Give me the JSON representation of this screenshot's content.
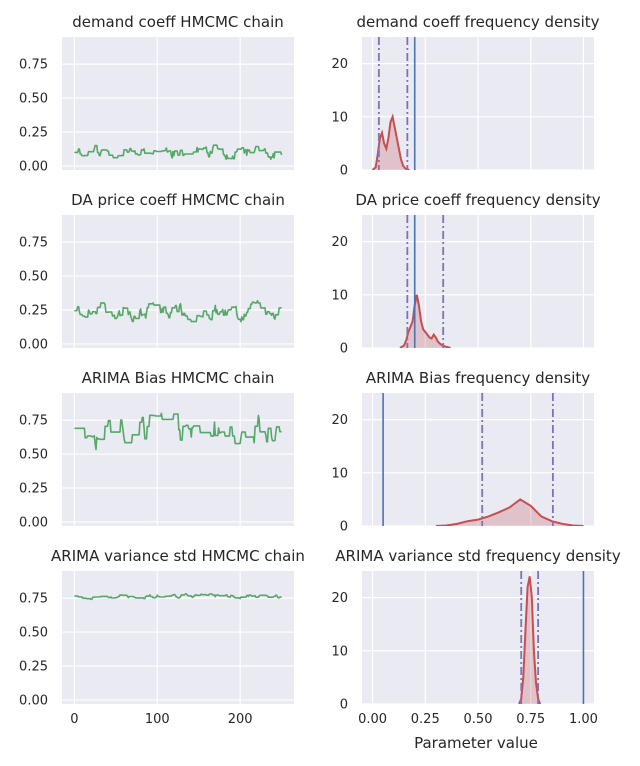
{
  "colors": {
    "panel_bg": "#eaeaf2",
    "grid": "#ffffff",
    "chain": "#55a868",
    "kde_line": "#c44e52",
    "kde_fill": "#c44e52",
    "ref_line": "#4c72b0",
    "ci_line": "#8172b3"
  },
  "figure": {
    "xlabel": "Parameter value"
  },
  "chart_data": [
    {
      "type": "line",
      "title": "demand coeff HMCMC chain",
      "xlim": [
        -15,
        265
      ],
      "ylim": [
        -0.03,
        0.95
      ],
      "xticks": [
        0,
        100,
        200
      ],
      "yticks": [
        0.0,
        0.25,
        0.5,
        0.75
      ],
      "xtick_labels": [
        "",
        "",
        ""
      ],
      "ytick_labels": [
        "0.00",
        "0.25",
        "0.50",
        "0.75"
      ],
      "series": [
        {
          "x": [
            0,
            250
          ],
          "y": [
            0.1,
            0.1
          ],
          "trace": {
            "seed": 11,
            "n": 250,
            "center": 0.1,
            "spread": 0.045,
            "stay": 0.6
          }
        }
      ]
    },
    {
      "type": "area",
      "title": "demand coeff frequency density",
      "xlim": [
        -0.05,
        1.05
      ],
      "ylim": [
        0,
        25
      ],
      "xticks": [
        0,
        0.25,
        0.5,
        0.75,
        1.0
      ],
      "yticks": [
        0,
        10,
        20
      ],
      "xtick_labels": [
        "",
        "",
        "",
        "",
        ""
      ],
      "ytick_labels": [
        "0",
        "10",
        "20"
      ],
      "kde": {
        "x": [
          0.0,
          0.015,
          0.025,
          0.035,
          0.045,
          0.055,
          0.065,
          0.075,
          0.085,
          0.095,
          0.105,
          0.115,
          0.125,
          0.135,
          0.145,
          0.155,
          0.165,
          0.175
        ],
        "y": [
          0,
          0.5,
          3,
          6,
          7,
          5,
          4,
          6,
          9,
          10,
          8,
          6,
          4,
          2,
          0.8,
          0.3,
          0.1,
          0
        ]
      },
      "ref_line": 0.2,
      "ci": [
        0.03,
        0.165
      ]
    },
    {
      "type": "line",
      "title": "DA price coeff HMCMC chain",
      "xlim": [
        -15,
        265
      ],
      "ylim": [
        -0.03,
        0.95
      ],
      "xticks": [
        0,
        100,
        200
      ],
      "yticks": [
        0.0,
        0.25,
        0.5,
        0.75
      ],
      "xtick_labels": [
        "",
        "",
        ""
      ],
      "ytick_labels": [
        "0.00",
        "0.25",
        "0.50",
        "0.75"
      ],
      "series": [
        {
          "x": [
            0,
            250
          ],
          "y": [
            0.24,
            0.24
          ],
          "trace": {
            "seed": 23,
            "n": 250,
            "center": 0.245,
            "spread": 0.055,
            "stay": 0.55
          }
        }
      ]
    },
    {
      "type": "area",
      "title": "DA price coeff frequency density",
      "xlim": [
        -0.05,
        1.05
      ],
      "ylim": [
        0,
        25
      ],
      "xticks": [
        0,
        0.25,
        0.5,
        0.75,
        1.0
      ],
      "yticks": [
        0,
        10,
        20
      ],
      "xtick_labels": [
        "",
        "",
        "",
        "",
        ""
      ],
      "ytick_labels": [
        "0",
        "10",
        "20"
      ],
      "kde": {
        "x": [
          0.13,
          0.15,
          0.16,
          0.17,
          0.18,
          0.19,
          0.2,
          0.21,
          0.22,
          0.23,
          0.24,
          0.25,
          0.26,
          0.27,
          0.28,
          0.29,
          0.3,
          0.31,
          0.32,
          0.33,
          0.35,
          0.37
        ],
        "y": [
          0,
          0.5,
          1.5,
          3,
          4,
          5,
          8,
          10,
          8,
          5,
          3.5,
          3,
          2.5,
          2,
          1.8,
          2.5,
          2,
          1.2,
          0.8,
          0.5,
          0.2,
          0
        ]
      },
      "ref_line": 0.2,
      "ci": [
        0.165,
        0.335
      ]
    },
    {
      "type": "line",
      "title": "ARIMA Bias HMCMC chain",
      "xlim": [
        -15,
        265
      ],
      "ylim": [
        -0.03,
        0.95
      ],
      "xticks": [
        0,
        100,
        200
      ],
      "yticks": [
        0.0,
        0.25,
        0.5,
        0.75
      ],
      "xtick_labels": [
        "",
        "",
        ""
      ],
      "ytick_labels": [
        "0.00",
        "0.25",
        "0.50",
        "0.75"
      ],
      "series": [
        {
          "x": [
            0,
            250
          ],
          "y": [
            0.68,
            0.68
          ],
          "trace": {
            "seed": 37,
            "n": 250,
            "center": 0.69,
            "spread": 0.11,
            "stay": 0.75
          }
        }
      ]
    },
    {
      "type": "area",
      "title": "ARIMA Bias frequency density",
      "xlim": [
        -0.05,
        1.05
      ],
      "ylim": [
        0,
        25
      ],
      "xticks": [
        0,
        0.25,
        0.5,
        0.75,
        1.0
      ],
      "yticks": [
        0,
        10,
        20
      ],
      "xtick_labels": [
        "",
        "",
        "",
        "",
        ""
      ],
      "ytick_labels": [
        "0",
        "10",
        "20"
      ],
      "kde": {
        "x": [
          0.3,
          0.35,
          0.4,
          0.45,
          0.5,
          0.55,
          0.6,
          0.65,
          0.7,
          0.75,
          0.8,
          0.85,
          0.9,
          0.95,
          1.0
        ],
        "y": [
          0,
          0.1,
          0.4,
          0.9,
          1.2,
          1.8,
          2.6,
          3.5,
          5,
          3.8,
          1.8,
          0.9,
          0.4,
          0.1,
          0
        ]
      },
      "ref_line": 0.05,
      "ci": [
        0.52,
        0.855
      ]
    },
    {
      "type": "line",
      "title": "ARIMA variance std HMCMC chain",
      "xlim": [
        -15,
        265
      ],
      "ylim": [
        -0.03,
        0.95
      ],
      "xticks": [
        0,
        100,
        200
      ],
      "yticks": [
        0.0,
        0.25,
        0.5,
        0.75
      ],
      "xtick_labels": [
        "0",
        "100",
        "200"
      ],
      "ytick_labels": [
        "0.00",
        "0.25",
        "0.50",
        "0.75"
      ],
      "series": [
        {
          "x": [
            0,
            250
          ],
          "y": [
            0.76,
            0.76
          ],
          "trace": {
            "seed": 53,
            "n": 250,
            "center": 0.765,
            "spread": 0.015,
            "stay": 0.65
          }
        }
      ]
    },
    {
      "type": "area",
      "title": "ARIMA variance std frequency density",
      "xlim": [
        -0.05,
        1.05
      ],
      "ylim": [
        0,
        25
      ],
      "xticks": [
        0,
        0.25,
        0.5,
        0.75,
        1.0
      ],
      "yticks": [
        0,
        10,
        20
      ],
      "xtick_labels": [
        "0.00",
        "0.25",
        "0.50",
        "0.75",
        "1.00"
      ],
      "ytick_labels": [
        "0",
        "10",
        "20"
      ],
      "kde": {
        "x": [
          0.695,
          0.705,
          0.715,
          0.725,
          0.735,
          0.745,
          0.755,
          0.765,
          0.775,
          0.785,
          0.795
        ],
        "y": [
          0,
          1,
          5,
          14,
          22,
          24,
          20,
          10,
          4,
          1,
          0
        ]
      },
      "ref_line": 1.0,
      "ci": [
        0.705,
        0.785
      ]
    }
  ]
}
